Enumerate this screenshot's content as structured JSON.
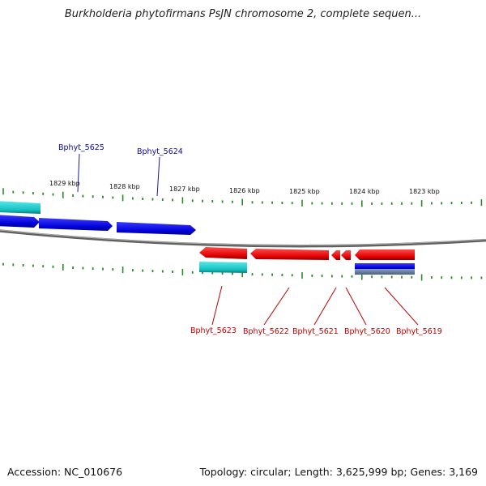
{
  "title": "Burkholderia phytofirmans PsJN chromosome 2, complete sequen...",
  "footer": {
    "accession": "Accession: NC_010676",
    "summary": "Topology: circular; Length: 3,625,999 bp; Genes: 3,169"
  },
  "scale_labels": [
    "1829 kbp",
    "1828 kbp",
    "1827 kbp",
    "1826 kbp",
    "1825 kbp",
    "1824 kbp",
    "1823 kbp"
  ],
  "gene_labels_top": [
    "Bphyt_5625",
    "Bphyt_5624"
  ],
  "gene_labels_bottom": [
    "Bphyt_5623",
    "Bphyt_5622",
    "Bphyt_5621",
    "Bphyt_5620",
    "Bphyt_5619"
  ],
  "colors": {
    "forward_gene": "#1010e0",
    "reverse_gene": "#e81010",
    "cyan_feature": "#22c8c8",
    "top_label": "#0a0a9a",
    "bottom_label": "#c00000",
    "ticks": "#2a8a2a",
    "backbone": "#808080"
  }
}
